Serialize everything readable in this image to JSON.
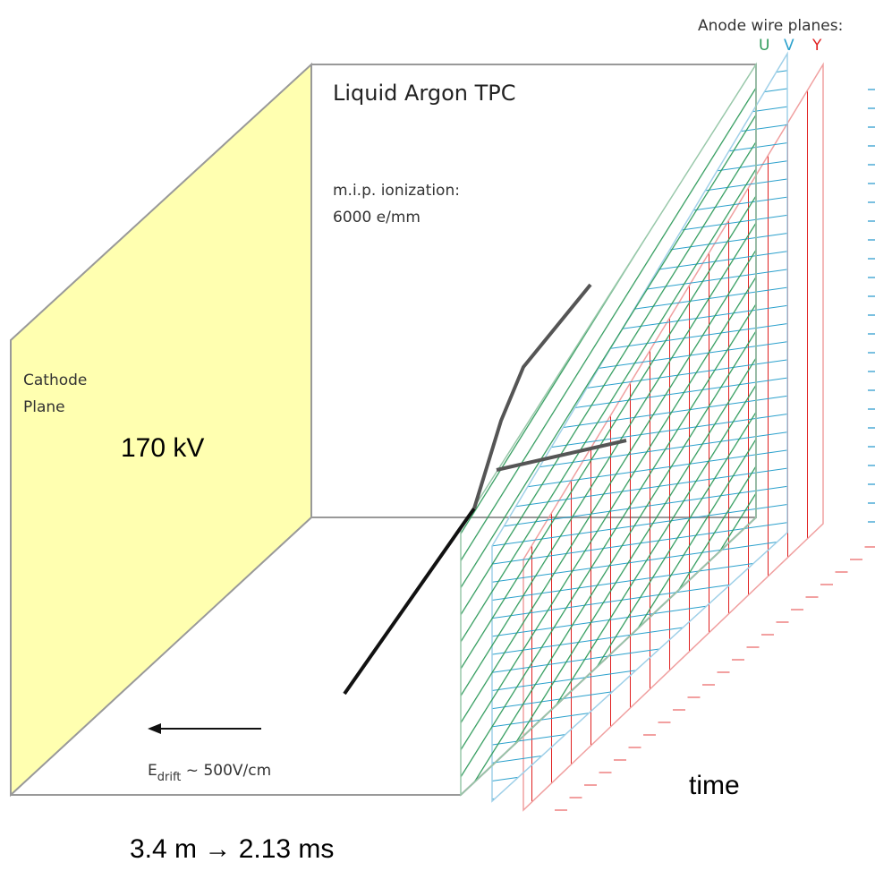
{
  "anode": {
    "title": "Anode wire planes:",
    "planes": [
      "U",
      "V",
      "Y"
    ]
  },
  "tpc": {
    "title": "Liquid Argon TPC",
    "ionization": [
      "m.i.p. ionization:",
      "6000 e/mm"
    ]
  },
  "cathode": {
    "label": [
      "Cathode",
      "Plane"
    ],
    "voltage": "170 kV"
  },
  "field": {
    "symbol": "E",
    "subscript": "drift",
    "value": " ~ 500V/cm"
  },
  "time_label": "time",
  "drift_caption": "3.4 m → 2.13 ms"
}
